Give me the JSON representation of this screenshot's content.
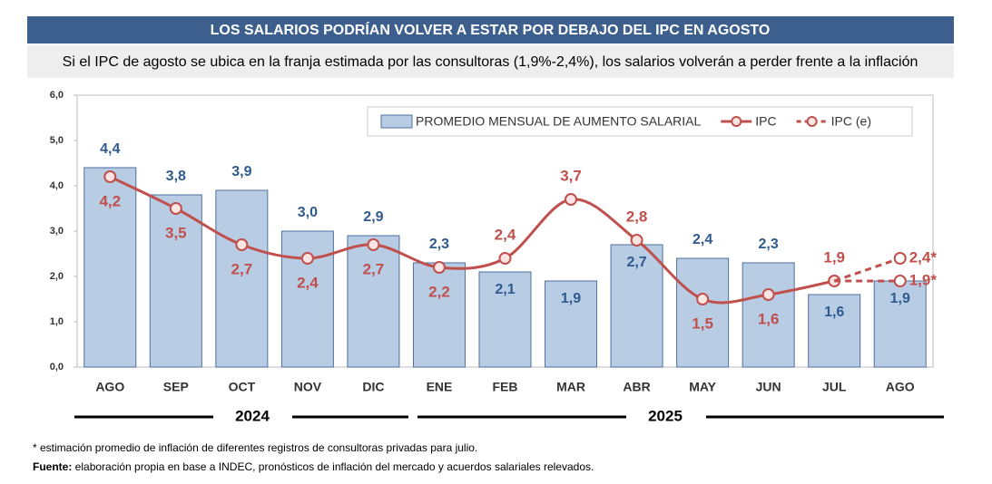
{
  "chart_data": {
    "type": "bar",
    "title": "LOS SALARIOS PODRÍAN VOLVER A ESTAR POR DEBAJO DEL IPC EN AGOSTO",
    "subtitle": "Si el IPC de agosto se ubica en la franja estimada por las consultoras (1,9%-2,4%), los salarios volverán a perder frente a la inflación",
    "categories": [
      "AGO",
      "SEP",
      "OCT",
      "NOV",
      "DIC",
      "ENE",
      "FEB",
      "MAR",
      "ABR",
      "MAY",
      "JUN",
      "JUL",
      "AGO"
    ],
    "years": [
      "2024",
      "2025"
    ],
    "series": [
      {
        "name": "PROMEDIO MENSUAL DE AUMENTO SALARIAL",
        "type": "bar",
        "color": "#b8cce4",
        "values": [
          4.4,
          3.8,
          3.9,
          3.0,
          2.9,
          2.3,
          2.1,
          1.9,
          2.7,
          2.4,
          2.3,
          1.6,
          1.9
        ],
        "value_labels": [
          "4,4",
          "3,8",
          "3,9",
          "3,0",
          "2,9",
          "2,3",
          "2,1",
          "1,9",
          "2,7",
          "2,4",
          "2,3",
          "1,6",
          "1,9"
        ]
      },
      {
        "name": "IPC",
        "type": "line",
        "color": "#c0504d",
        "values": [
          4.2,
          3.5,
          2.7,
          2.4,
          2.7,
          2.2,
          2.4,
          3.7,
          2.8,
          1.5,
          1.6,
          1.9,
          null
        ],
        "value_labels": [
          "4,2",
          "3,5",
          "2,7",
          "2,4",
          "2,7",
          "2,2",
          "2,4",
          "3,7",
          "2,8",
          "1,5",
          "1,6",
          "1,9",
          null
        ]
      },
      {
        "name": "IPC (e)",
        "type": "dashed",
        "color": "#c0504d",
        "values": [
          null,
          null,
          null,
          null,
          null,
          null,
          null,
          null,
          null,
          null,
          null,
          1.9,
          2.4
        ],
        "value_labels": [
          null,
          null,
          null,
          null,
          null,
          null,
          null,
          null,
          null,
          null,
          null,
          null,
          "2,4*"
        ]
      },
      {
        "type": "dashed",
        "color": "#c0504d",
        "values": [
          null,
          null,
          null,
          null,
          null,
          null,
          null,
          null,
          null,
          null,
          null,
          1.9,
          1.9
        ],
        "value_labels": [
          null,
          null,
          null,
          null,
          null,
          null,
          null,
          null,
          null,
          null,
          null,
          null,
          "1,9*"
        ]
      }
    ],
    "ylim": [
      0,
      6
    ],
    "yticks": [
      {
        "value": 0,
        "label": "0,0"
      },
      {
        "value": 1,
        "label": "1,0"
      },
      {
        "value": 2,
        "label": "2,0"
      },
      {
        "value": 3,
        "label": "3,0"
      },
      {
        "value": 4,
        "label": "4,0"
      },
      {
        "value": 5,
        "label": "5,0"
      },
      {
        "value": 6,
        "label": "6,0"
      }
    ],
    "legend": "top-right",
    "footnote": "* estimación promedio de inflación de diferentes registros de consultoras privadas para julio.",
    "source_label": "Fuente:",
    "source": " elaboración propia en base a INDEC, pronósticos de inflación del mercado y acuerdos salariales relevados."
  }
}
